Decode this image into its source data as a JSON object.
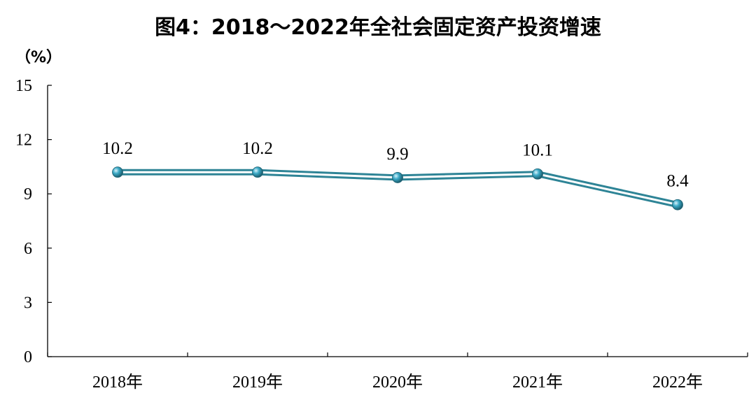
{
  "chart_data": {
    "type": "line",
    "title": "图4：2018～2022年全社会固定资产投资增速",
    "unit_label": "（%）",
    "categories": [
      "2018年",
      "2019年",
      "2020年",
      "2021年",
      "2022年"
    ],
    "values": [
      10.2,
      10.2,
      9.9,
      10.1,
      8.4
    ],
    "data_labels": [
      "10.2",
      "10.2",
      "9.9",
      "10.1",
      "8.4"
    ],
    "ylim": [
      0,
      15
    ],
    "yticks": [
      0,
      3,
      6,
      9,
      12,
      15
    ],
    "grid": false,
    "legend": "none",
    "colors": {
      "line": "#2E8496",
      "marker": "#3BA9C6",
      "axis": "#000000"
    }
  }
}
